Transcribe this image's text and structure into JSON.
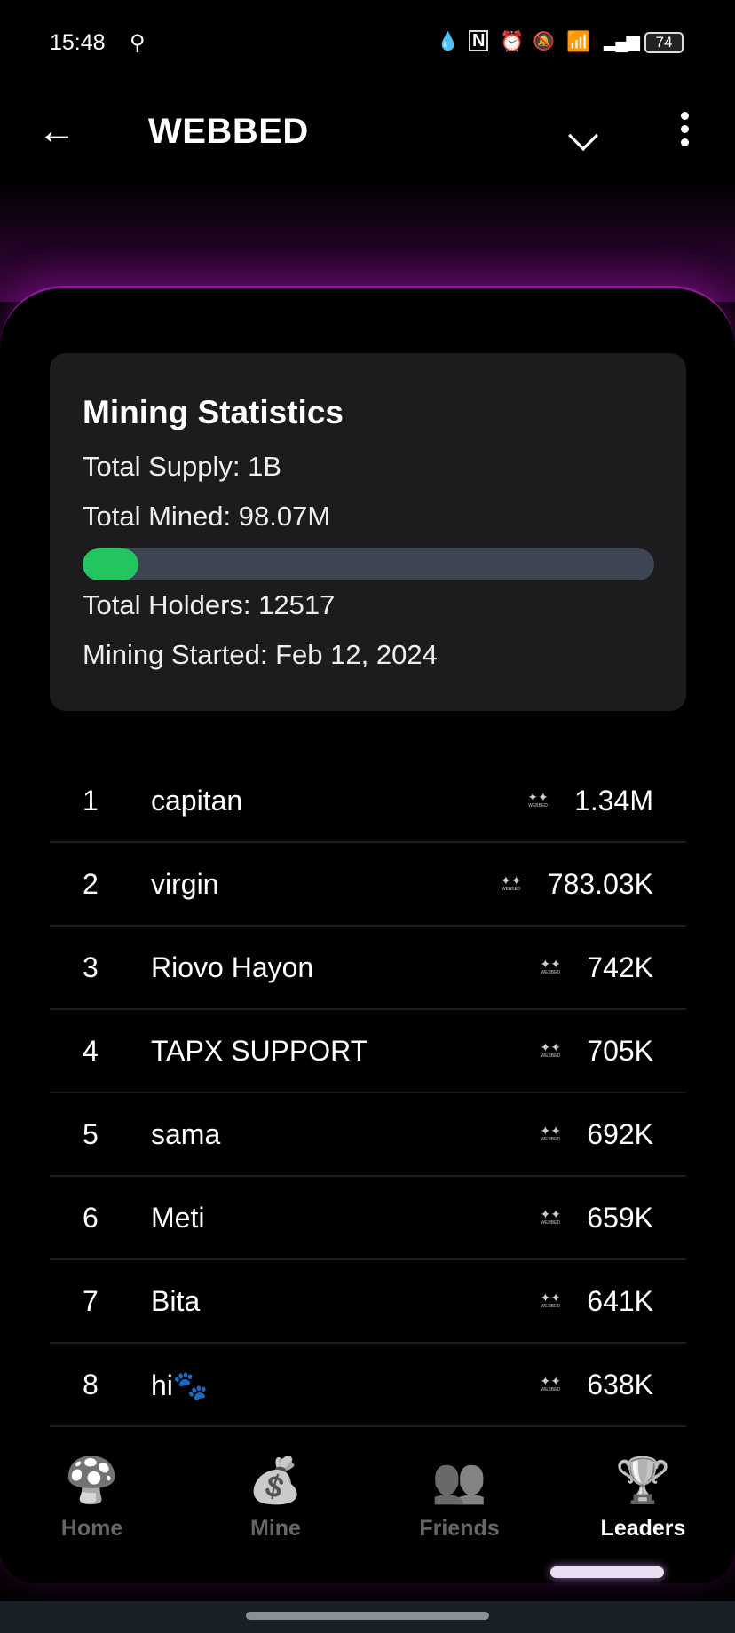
{
  "status_bar": {
    "time": "15:48",
    "battery": "74",
    "icons": [
      "search-icon",
      "data-saver-icon",
      "nfc-icon",
      "alarm-icon",
      "mute-icon",
      "wifi-icon",
      "signal-icon"
    ]
  },
  "header": {
    "title": "WEBBED",
    "back_icon": "arrow-left-icon",
    "dropdown_icon": "chevron-down-icon",
    "menu_icon": "more-vertical-icon"
  },
  "stats": {
    "title": "Mining Statistics",
    "total_supply": "Total Supply: 1B",
    "total_mined": "Total Mined: 98.07M",
    "mined_progress_percent": 9.807,
    "total_holders": "Total Holders: 12517",
    "mining_started": "Mining Started: Feb 12, 2024",
    "progress_color": "#22c55e"
  },
  "leaders": [
    {
      "rank": "1",
      "name": "capitan",
      "value": "1.34M"
    },
    {
      "rank": "2",
      "name": "virgin",
      "value": "783.03K"
    },
    {
      "rank": "3",
      "name": "Riovo Hayon",
      "value": "742K"
    },
    {
      "rank": "4",
      "name": "TAPX SUPPORT",
      "value": "705K"
    },
    {
      "rank": "5",
      "name": "sama",
      "value": "692K"
    },
    {
      "rank": "6",
      "name": "Meti",
      "value": "659K"
    },
    {
      "rank": "7",
      "name": "Bita",
      "value": "641K"
    },
    {
      "rank": "8",
      "name": "hi🐾",
      "value": "638K"
    }
  ],
  "token_logo_text": "WEBBED",
  "nav": [
    {
      "label": "Home",
      "icon": "mushroom-house-icon",
      "glyph": "🍄"
    },
    {
      "label": "Mine",
      "icon": "money-bag-icon",
      "glyph": "💰"
    },
    {
      "label": "Friends",
      "icon": "friends-icon",
      "glyph": "👥"
    },
    {
      "label": "Leaders",
      "icon": "trophy-icon",
      "glyph": "🏆",
      "active": true
    }
  ]
}
